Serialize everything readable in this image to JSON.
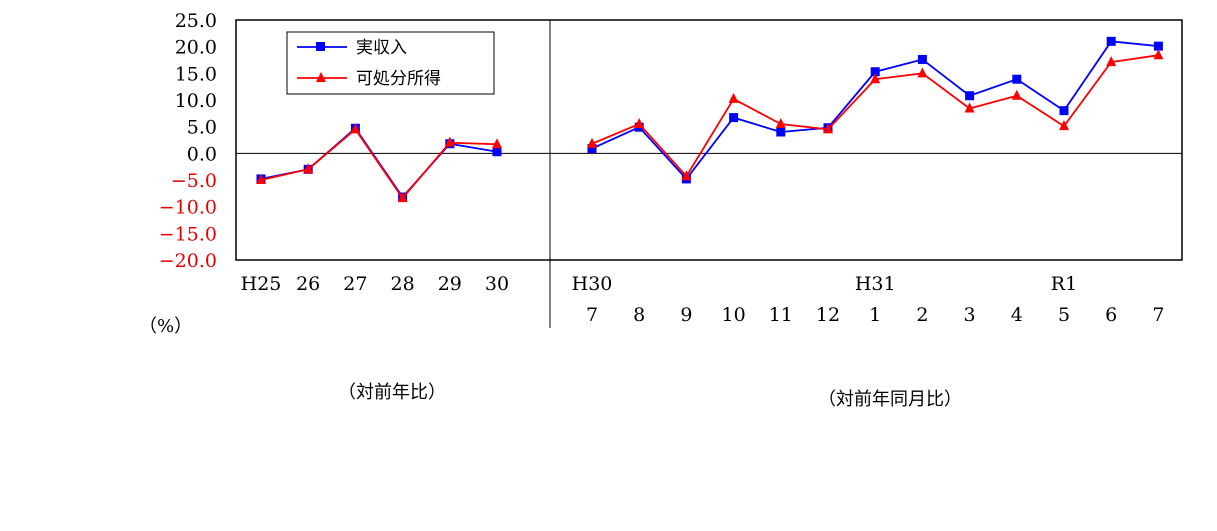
{
  "chart_data": {
    "type": "line",
    "unit_label": "（%）",
    "ylim": [
      -20,
      25
    ],
    "yticks": [
      "25.0",
      "20.0",
      "15.0",
      "10.0",
      "5.0",
      "0.0",
      "−5.0",
      "−10.0",
      "−15.0",
      "−20.0"
    ],
    "negative_tick_color": "#e60000",
    "annual": {
      "note": "（対前年比）",
      "categories": [
        "H25",
        "26",
        "27",
        "28",
        "29",
        "30"
      ],
      "series": [
        {
          "name": "実収入",
          "color": "#0000ff",
          "marker": "square",
          "values": [
            -4.8,
            -3.0,
            4.7,
            -8.2,
            1.8,
            0.3
          ]
        },
        {
          "name": "可処分所得",
          "color": "#ff0000",
          "marker": "triangle",
          "values": [
            -5.0,
            -3.0,
            4.5,
            -8.4,
            2.0,
            1.7
          ]
        }
      ]
    },
    "monthly": {
      "note": "（対前年同月比）",
      "year_labels": [
        "H30",
        "",
        "",
        "",
        "",
        "",
        "H31",
        "",
        "",
        "",
        "R1",
        "",
        ""
      ],
      "categories": [
        "7",
        "8",
        "9",
        "10",
        "11",
        "12",
        "1",
        "2",
        "3",
        "4",
        "5",
        "6",
        "7"
      ],
      "series": [
        {
          "name": "実収入",
          "color": "#0000ff",
          "marker": "square",
          "values": [
            0.9,
            4.9,
            -4.8,
            6.7,
            4.0,
            4.8,
            15.3,
            17.6,
            10.8,
            13.9,
            8.0,
            21.0,
            20.1
          ]
        },
        {
          "name": "可処分所得",
          "color": "#ff0000",
          "marker": "triangle",
          "values": [
            1.8,
            5.5,
            -4.3,
            10.2,
            5.5,
            4.5,
            13.9,
            15.0,
            8.4,
            10.8,
            5.1,
            17.1,
            18.4
          ]
        }
      ]
    },
    "legend": {
      "position": "top-left",
      "items": [
        {
          "label": "実収入",
          "color": "#0000ff",
          "marker": "square"
        },
        {
          "label": "可処分所得",
          "color": "#ff0000",
          "marker": "triangle"
        }
      ]
    },
    "grid": false
  }
}
